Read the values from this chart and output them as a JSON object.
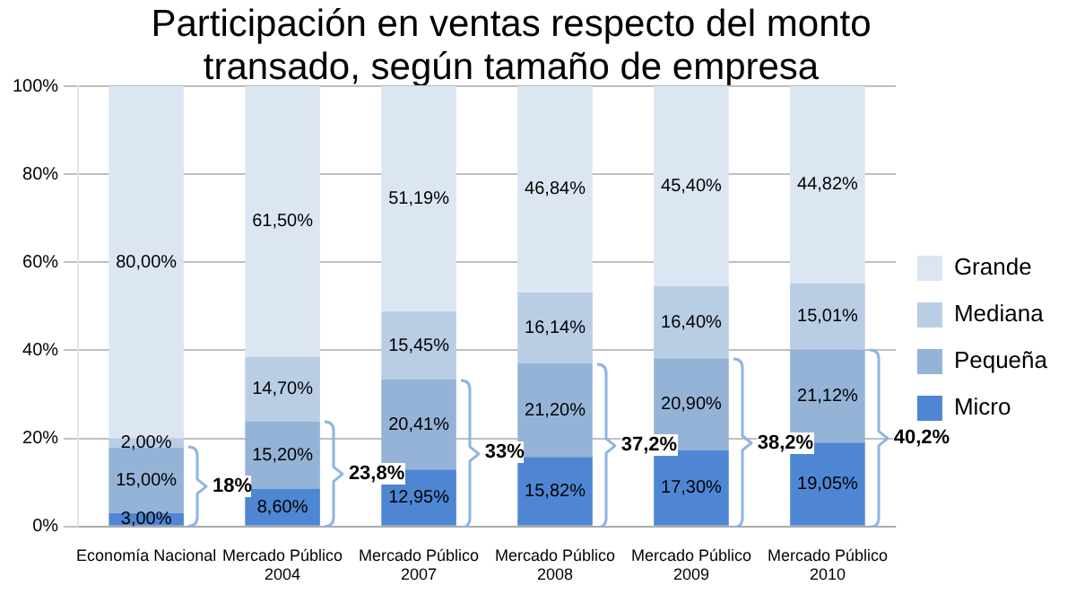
{
  "chart_data": {
    "type": "bar",
    "title": "Participación en ventas respecto del monto transado, según tamaño de empresa",
    "stacked": true,
    "categories": [
      "Economía Nacional",
      "Mercado Público 2004",
      "Mercado Público 2007",
      "Mercado Público 2008",
      "Mercado Público 2009",
      "Mercado Público 2010"
    ],
    "series": [
      {
        "name": "Micro",
        "color": "#4f86d4",
        "values": [
          3.0,
          8.6,
          12.95,
          15.82,
          17.3,
          19.05
        ],
        "value_labels": [
          "3,00%",
          "8,60%",
          "12,95%",
          "15,82%",
          "17,30%",
          "19,05%"
        ]
      },
      {
        "name": "Pequeña",
        "color": "#95b3d7",
        "values": [
          15.0,
          15.2,
          20.41,
          21.2,
          20.9,
          21.12
        ],
        "value_labels": [
          "15,00%",
          "15,20%",
          "20,41%",
          "21,20%",
          "20,90%",
          "21,12%"
        ]
      },
      {
        "name": "Mediana",
        "color": "#b9cde5",
        "values": [
          2.0,
          14.7,
          15.45,
          16.14,
          16.4,
          15.01
        ],
        "value_labels": [
          "2,00%",
          "14,70%",
          "15,45%",
          "16,14%",
          "16,40%",
          "15,01%"
        ]
      },
      {
        "name": "Grande",
        "color": "#dce6f2",
        "values": [
          80.0,
          61.5,
          51.19,
          46.84,
          45.4,
          44.82
        ],
        "value_labels": [
          "80,00%",
          "61,50%",
          "51,19%",
          "46,84%",
          "45,40%",
          "44,82%"
        ]
      }
    ],
    "ylim": [
      0,
      100
    ],
    "yticks": [
      {
        "value": 0,
        "label": "0%"
      },
      {
        "value": 20,
        "label": "20%"
      },
      {
        "value": 40,
        "label": "40%"
      },
      {
        "value": 60,
        "label": "60%"
      },
      {
        "value": 80,
        "label": "80%"
      },
      {
        "value": 100,
        "label": "100%"
      }
    ],
    "grid": "y",
    "legend": "right",
    "annotations": [
      "18%",
      "23,8%",
      "33%",
      "37,2%",
      "38,2%",
      "40,2%"
    ]
  }
}
